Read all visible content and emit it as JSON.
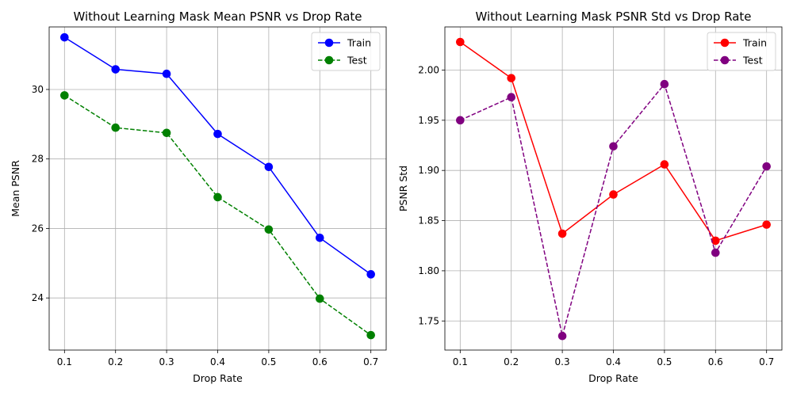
{
  "chart_data": [
    {
      "type": "line",
      "title": "Without Learning Mask Mean PSNR vs Drop Rate",
      "xlabel": "Drop Rate",
      "ylabel": "Mean PSNR",
      "x": [
        0.1,
        0.2,
        0.3,
        0.4,
        0.5,
        0.6,
        0.7
      ],
      "xlim": [
        0.07,
        0.73
      ],
      "ylim": [
        22.5,
        31.8
      ],
      "xticks": [
        "0.1",
        "0.2",
        "0.3",
        "0.4",
        "0.5",
        "0.6",
        "0.7"
      ],
      "yticks": [
        "24",
        "26",
        "28",
        "30"
      ],
      "grid": true,
      "legend": "top-right",
      "series": [
        {
          "name": "Train",
          "color": "#0000ff",
          "dash": "solid",
          "values": [
            31.5,
            30.58,
            30.45,
            28.72,
            27.77,
            25.73,
            24.68
          ]
        },
        {
          "name": "Test",
          "color": "#008000",
          "dash": "dashed",
          "values": [
            29.83,
            28.9,
            28.75,
            26.9,
            25.97,
            23.98,
            22.93
          ]
        }
      ]
    },
    {
      "type": "line",
      "title": "Without Learning Mask PSNR Std vs Drop Rate",
      "xlabel": "Drop Rate",
      "ylabel": "PSNR Std",
      "x": [
        0.1,
        0.2,
        0.3,
        0.4,
        0.5,
        0.6,
        0.7
      ],
      "xlim": [
        0.07,
        0.73
      ],
      "ylim": [
        1.721,
        2.043
      ],
      "xticks": [
        "0.1",
        "0.2",
        "0.3",
        "0.4",
        "0.5",
        "0.6",
        "0.7"
      ],
      "yticks": [
        "1.75",
        "1.80",
        "1.85",
        "1.90",
        "1.95",
        "2.00"
      ],
      "grid": true,
      "legend": "top-right",
      "series": [
        {
          "name": "Train",
          "color": "#ff0000",
          "dash": "solid",
          "values": [
            2.028,
            1.992,
            1.837,
            1.876,
            1.906,
            1.83,
            1.846
          ]
        },
        {
          "name": "Test",
          "color": "#800080",
          "dash": "dashed",
          "values": [
            1.95,
            1.973,
            1.735,
            1.924,
            1.986,
            1.818,
            1.904
          ]
        }
      ]
    }
  ]
}
